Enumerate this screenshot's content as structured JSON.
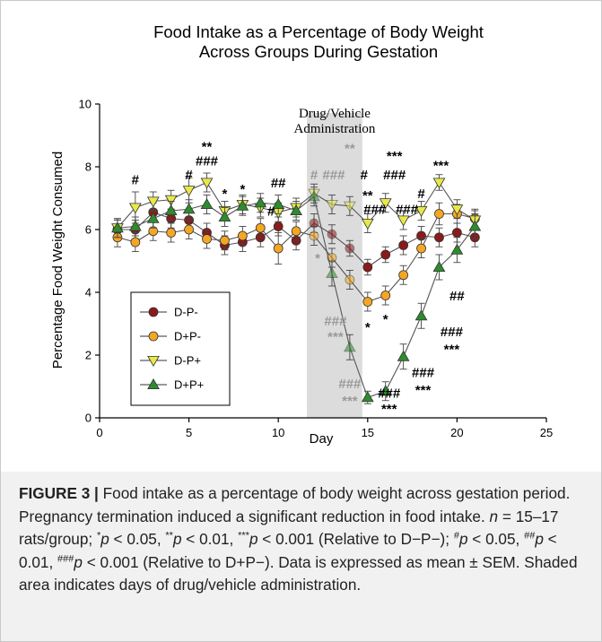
{
  "chart_data": {
    "type": "line",
    "title": "Food Intake as a Percentage of Body Weight",
    "subtitle": "Across Groups During Gestation",
    "xlabel": "Day",
    "ylabel": "Percentage Food Weight Consumed",
    "xlim": [
      0,
      25
    ],
    "ylim": [
      0,
      10
    ],
    "x_ticks": [
      0,
      5,
      10,
      15,
      20,
      25
    ],
    "y_ticks": [
      0,
      2,
      4,
      6,
      8,
      10
    ],
    "grid": false,
    "legend_position": "bottom-left",
    "shaded_region": {
      "x_start": 11.6,
      "x_end": 14.7,
      "label_line1": "Drug/Vehicle",
      "label_line2": "Administration",
      "color": "#dcdcdc"
    },
    "x": [
      1,
      2,
      3,
      4,
      5,
      6,
      7,
      8,
      9,
      10,
      11,
      12,
      13,
      14,
      15,
      16,
      17,
      18,
      19,
      20,
      21
    ],
    "series": [
      {
        "name": "D-P-",
        "marker": "circle",
        "fill": "#8b1a1a",
        "line": "#000000",
        "values": [
          6.0,
          6.0,
          6.55,
          6.35,
          6.3,
          5.9,
          5.5,
          5.6,
          5.75,
          6.1,
          5.65,
          6.2,
          5.85,
          5.4,
          4.8,
          5.2,
          5.5,
          5.8,
          5.75,
          5.9,
          5.75
        ],
        "errors": [
          0.3,
          0.3,
          0.3,
          0.3,
          0.3,
          0.3,
          0.3,
          0.3,
          0.3,
          0.3,
          0.3,
          0.3,
          0.3,
          0.25,
          0.25,
          0.25,
          0.3,
          0.3,
          0.3,
          0.3,
          0.3
        ]
      },
      {
        "name": "D+P-",
        "marker": "circle",
        "fill": "#f5a623",
        "line": "#000000",
        "values": [
          5.75,
          5.6,
          5.95,
          5.9,
          6.0,
          5.7,
          5.65,
          5.8,
          6.05,
          5.4,
          5.95,
          5.8,
          5.1,
          4.4,
          3.7,
          3.9,
          4.55,
          5.4,
          6.5,
          6.5,
          6.35
        ],
        "errors": [
          0.3,
          0.3,
          0.3,
          0.3,
          0.3,
          0.3,
          0.3,
          0.3,
          0.3,
          0.5,
          0.3,
          0.3,
          0.3,
          0.3,
          0.3,
          0.3,
          0.3,
          0.3,
          0.35,
          0.3,
          0.3
        ]
      },
      {
        "name": "D-P+",
        "marker": "tri-down",
        "fill": "#e8e84a",
        "line": "#000000",
        "values": [
          6.05,
          6.7,
          6.9,
          6.95,
          7.25,
          7.5,
          6.6,
          6.8,
          6.7,
          6.55,
          6.7,
          7.15,
          6.8,
          6.75,
          6.2,
          6.85,
          6.3,
          6.6,
          7.5,
          6.65,
          6.3
        ],
        "errors": [
          0.3,
          0.5,
          0.3,
          0.3,
          0.4,
          0.3,
          0.3,
          0.3,
          0.3,
          0.3,
          0.3,
          0.3,
          0.3,
          0.3,
          0.3,
          0.3,
          0.3,
          0.3,
          0.25,
          0.3,
          0.3
        ]
      },
      {
        "name": "D+P+",
        "marker": "tri-up",
        "fill": "#2e8b2e",
        "line": "#000000",
        "values": [
          6.05,
          6.1,
          6.35,
          6.6,
          6.65,
          6.8,
          6.4,
          6.75,
          6.85,
          6.8,
          6.6,
          7.05,
          4.6,
          2.25,
          0.65,
          0.85,
          1.95,
          3.25,
          4.8,
          5.35,
          6.1
        ],
        "errors": [
          0.3,
          0.3,
          0.3,
          0.3,
          0.3,
          0.3,
          0.3,
          0.3,
          0.3,
          0.3,
          0.3,
          0.3,
          0.4,
          0.4,
          0.2,
          0.3,
          0.4,
          0.4,
          0.4,
          0.4,
          0.4
        ]
      }
    ],
    "annotations": [
      {
        "text": "#",
        "x": 2.0,
        "y": 7.45,
        "color": "black"
      },
      {
        "text": "**",
        "x": 6.0,
        "y": 8.5,
        "color": "black"
      },
      {
        "text": "###",
        "x": 6.0,
        "y": 8.05,
        "color": "black"
      },
      {
        "text": "#",
        "x": 5.0,
        "y": 7.6,
        "color": "black"
      },
      {
        "text": "*",
        "x": 7.0,
        "y": 7.0,
        "color": "black"
      },
      {
        "text": "*",
        "x": 8.0,
        "y": 7.15,
        "color": "black"
      },
      {
        "text": "##",
        "x": 10.0,
        "y": 7.35,
        "color": "black"
      },
      {
        "text": "#",
        "x": 9.6,
        "y": 6.45,
        "color": "black"
      },
      {
        "text": "#",
        "x": 12.0,
        "y": 7.6,
        "color": "gray"
      },
      {
        "text": "###",
        "x": 13.1,
        "y": 7.6,
        "color": "gray"
      },
      {
        "text": "**",
        "x": 14.0,
        "y": 8.45,
        "color": "gray"
      },
      {
        "text": "*",
        "x": 12.2,
        "y": 4.95,
        "color": "gray"
      },
      {
        "text": "###",
        "x": 13.2,
        "y": 2.95,
        "color": "gray"
      },
      {
        "text": "***",
        "x": 13.2,
        "y": 2.45,
        "color": "gray"
      },
      {
        "text": "###",
        "x": 14.0,
        "y": 0.95,
        "color": "gray"
      },
      {
        "text": "***",
        "x": 14.0,
        "y": 0.4,
        "color": "gray"
      },
      {
        "text": "#",
        "x": 14.8,
        "y": 7.6,
        "color": "black"
      },
      {
        "text": "**",
        "x": 15.0,
        "y": 6.95,
        "color": "black"
      },
      {
        "text": "###",
        "x": 15.4,
        "y": 6.5,
        "color": "black"
      },
      {
        "text": "***",
        "x": 16.5,
        "y": 8.2,
        "color": "black"
      },
      {
        "text": "###",
        "x": 16.5,
        "y": 7.6,
        "color": "black"
      },
      {
        "text": "###",
        "x": 17.2,
        "y": 6.5,
        "color": "black"
      },
      {
        "text": "#",
        "x": 18.0,
        "y": 7.0,
        "color": "black"
      },
      {
        "text": "***",
        "x": 19.1,
        "y": 7.9,
        "color": "black"
      },
      {
        "text": "*",
        "x": 15.0,
        "y": 2.75,
        "color": "black"
      },
      {
        "text": "*",
        "x": 16.0,
        "y": 3.0,
        "color": "black"
      },
      {
        "text": "##",
        "x": 20.0,
        "y": 3.75,
        "color": "black"
      },
      {
        "text": "###",
        "x": 19.7,
        "y": 2.6,
        "color": "black"
      },
      {
        "text": "***",
        "x": 19.7,
        "y": 2.05,
        "color": "black"
      },
      {
        "text": "###",
        "x": 18.1,
        "y": 1.3,
        "color": "black"
      },
      {
        "text": "***",
        "x": 18.1,
        "y": 0.75,
        "color": "black"
      },
      {
        "text": "###",
        "x": 16.2,
        "y": 0.65,
        "color": "black"
      },
      {
        "text": "***",
        "x": 16.2,
        "y": 0.15,
        "color": "black"
      }
    ]
  },
  "caption": {
    "label": "FIGURE 3 |",
    "line1": " Food intake as a percentage of body weight across gestation period. Pregnancy termination induced a significant reduction in food intake. ",
    "n_italic": "n",
    "n_text": " = 15–17 rats/group; ",
    "stat1_sup": "*",
    "p_italic": "p",
    "stat1_text": " < 0.05, ",
    "stat2_sup": "**",
    "stat2_text": " < 0.01, ",
    "stat3_sup": "***",
    "stat3_text": " < 0.001 (Relative to D−P−); ",
    "stat4_sup": "#",
    "stat4_text": " < 0.05, ",
    "stat5_sup": "##",
    "stat5_text": " < 0.01, ",
    "stat6_sup": "###",
    "stat6_text": " < 0.001 (Relative to D+P−). Data is expressed as mean ± SEM. Shaded area indicates days of drug/vehicle administration."
  }
}
